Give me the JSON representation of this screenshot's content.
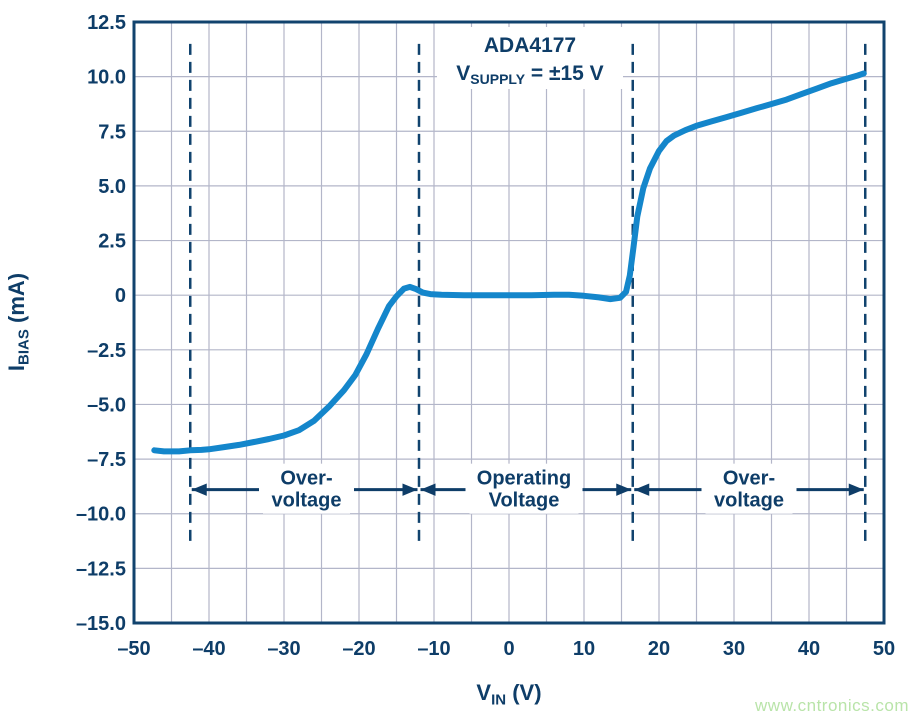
{
  "watermark": "www.cntronics.com",
  "colors": {
    "navy": "#0e3d68",
    "border": "#11436e",
    "grid": "#b3b6c9",
    "curve": "#1486cb",
    "watermark_green": "#b9e4a9",
    "background": "#ffffff"
  },
  "chart_data": {
    "type": "line",
    "title": "ADA4177",
    "subtitle": {
      "pre": "V",
      "sub": "SUPPLY",
      "post": " =  ±15 V"
    },
    "xlabel": {
      "pre": "V",
      "sub": "IN",
      "post": " (V)"
    },
    "ylabel": {
      "pre": "I",
      "sub": "BIAS",
      "post": " (mA)"
    },
    "xlim": [
      -50,
      50
    ],
    "ylim": [
      -15,
      12.5
    ],
    "grid": true,
    "x_grid_step": 5,
    "y_grid_step": 2.5,
    "x_ticks": [
      {
        "v": -50,
        "label": "–50"
      },
      {
        "v": -40,
        "label": "–40"
      },
      {
        "v": -30,
        "label": "–30"
      },
      {
        "v": -20,
        "label": "–20"
      },
      {
        "v": -10,
        "label": "–10"
      },
      {
        "v": 0,
        "label": "0"
      },
      {
        "v": 10,
        "label": "10"
      },
      {
        "v": 20,
        "label": "20"
      },
      {
        "v": 30,
        "label": "30"
      },
      {
        "v": 40,
        "label": "40"
      },
      {
        "v": 50,
        "label": "50"
      }
    ],
    "y_ticks": [
      {
        "v": 12.5,
        "label": "12.5"
      },
      {
        "v": 10,
        "label": "10.0"
      },
      {
        "v": 7.5,
        "label": "7.5"
      },
      {
        "v": 5,
        "label": "5.0"
      },
      {
        "v": 2.5,
        "label": "2.5"
      },
      {
        "v": 0,
        "label": "0"
      },
      {
        "v": -2.5,
        "label": "–2.5"
      },
      {
        "v": -5,
        "label": "–5.0"
      },
      {
        "v": -7.5,
        "label": "–7.5"
      },
      {
        "v": -10,
        "label": "–10.0"
      },
      {
        "v": -12.5,
        "label": "–12.5"
      },
      {
        "v": -15,
        "label": "–15.0"
      }
    ],
    "boundaries_x": [
      -42.5,
      -12,
      16.5,
      47.5
    ],
    "boundary_extent_y": [
      -11.3,
      11.5
    ],
    "annotation_y": -8.9,
    "regions": [
      {
        "from": -42.5,
        "to": -12,
        "label_lines": [
          "Over-",
          "voltage"
        ],
        "label_center_x": -27
      },
      {
        "from": -12,
        "to": 16.5,
        "label_lines": [
          "Operating",
          "Voltage"
        ],
        "label_center_x": 2
      },
      {
        "from": 16.5,
        "to": 47.5,
        "label_lines": [
          "Over-",
          "voltage"
        ],
        "label_center_x": 32
      }
    ],
    "series": [
      {
        "name": "input-bias-current",
        "color": "#1486cb",
        "points": [
          [
            -47.3,
            -7.1
          ],
          [
            -46,
            -7.15
          ],
          [
            -44,
            -7.15
          ],
          [
            -42.5,
            -7.1
          ],
          [
            -41,
            -7.08
          ],
          [
            -40,
            -7.05
          ],
          [
            -38,
            -6.95
          ],
          [
            -36,
            -6.85
          ],
          [
            -34,
            -6.72
          ],
          [
            -32,
            -6.58
          ],
          [
            -30,
            -6.42
          ],
          [
            -28,
            -6.18
          ],
          [
            -26,
            -5.75
          ],
          [
            -24,
            -5.1
          ],
          [
            -22,
            -4.35
          ],
          [
            -20.5,
            -3.65
          ],
          [
            -19,
            -2.7
          ],
          [
            -17.5,
            -1.55
          ],
          [
            -16,
            -0.5
          ],
          [
            -15,
            -0.05
          ],
          [
            -14,
            0.3
          ],
          [
            -13.2,
            0.38
          ],
          [
            -12.4,
            0.28
          ],
          [
            -11.5,
            0.12
          ],
          [
            -10.5,
            0.05
          ],
          [
            -9,
            0.02
          ],
          [
            -6,
            0
          ],
          [
            -3,
            0
          ],
          [
            0,
            0
          ],
          [
            3,
            0
          ],
          [
            6,
            0.02
          ],
          [
            8,
            0.02
          ],
          [
            10,
            -0.03
          ],
          [
            12,
            -0.1
          ],
          [
            13.5,
            -0.18
          ],
          [
            14.8,
            -0.12
          ],
          [
            15.6,
            0.15
          ],
          [
            16.1,
            0.9
          ],
          [
            16.6,
            2.2
          ],
          [
            17.1,
            3.6
          ],
          [
            17.9,
            4.9
          ],
          [
            18.8,
            5.8
          ],
          [
            20,
            6.6
          ],
          [
            21,
            7.05
          ],
          [
            22,
            7.3
          ],
          [
            23.5,
            7.55
          ],
          [
            25,
            7.75
          ],
          [
            27,
            7.95
          ],
          [
            29,
            8.15
          ],
          [
            31,
            8.35
          ],
          [
            33,
            8.55
          ],
          [
            35,
            8.75
          ],
          [
            37,
            8.95
          ],
          [
            39,
            9.2
          ],
          [
            41,
            9.45
          ],
          [
            43,
            9.7
          ],
          [
            45,
            9.9
          ],
          [
            46.5,
            10.05
          ],
          [
            47.3,
            10.15
          ]
        ]
      }
    ]
  }
}
